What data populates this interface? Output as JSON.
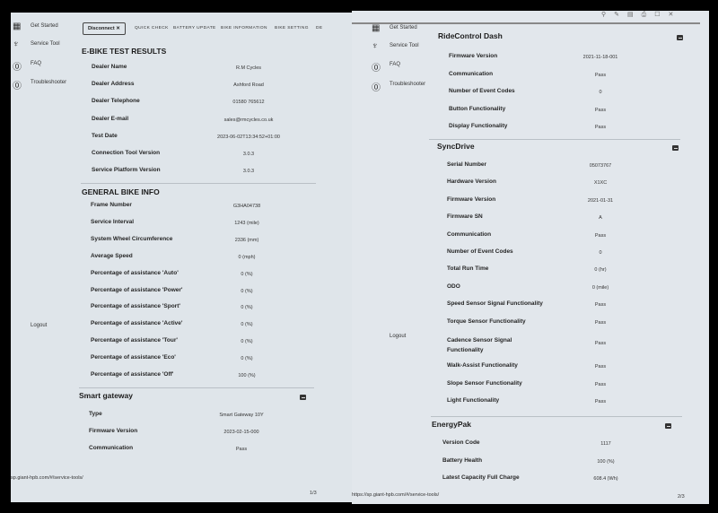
{
  "sidebar": {
    "items": [
      {
        "label": "Get Started",
        "icon": "grid-icon"
      },
      {
        "label": "Service Tool",
        "icon": "stethoscope-icon"
      },
      {
        "label": "FAQ",
        "icon": "help-circle-icon"
      },
      {
        "label": "Troubleshooter",
        "icon": "help-circle-icon"
      }
    ],
    "logout": "Logout"
  },
  "toolbar": {
    "disconnect_label": "Disconnect",
    "tabs": [
      "QUICK CHECK",
      "BATTERY UPDATE",
      "BIKE INFORMATION",
      "BIKE SETTING",
      "DE"
    ]
  },
  "page1": {
    "test_results": {
      "title": "E-BIKE TEST RESULTS",
      "rows": [
        {
          "label": "Dealer Name",
          "value": "R.M Cycles"
        },
        {
          "label": "Dealer Address",
          "value": "Ashford Road"
        },
        {
          "label": "Dealer Telephone",
          "value": "01580 765612"
        },
        {
          "label": "Dealer E-mail",
          "value": "sales@rmcycles.co.uk"
        },
        {
          "label": "Test Date",
          "value": "2023-06-02T13:34:52+01:00"
        },
        {
          "label": "Connection Tool Version",
          "value": "3.0.3"
        },
        {
          "label": "Service Platform Version",
          "value": "3.0.3"
        }
      ]
    },
    "general": {
      "title": "GENERAL BIKE INFO",
      "rows": [
        {
          "label": "Frame Number",
          "value": "G3HA04738"
        },
        {
          "label": "Service Interval",
          "value": "1243 (mile)"
        },
        {
          "label": "System Wheel Circumference",
          "value": "2336 (mm)"
        },
        {
          "label": "Average Speed",
          "value": "0 (mph)"
        },
        {
          "label": "Percentage of assistance 'Auto'",
          "value": "0 (%)"
        },
        {
          "label": "Percentage of assistance 'Power'",
          "value": "0 (%)"
        },
        {
          "label": "Percentage of assistance 'Sport'",
          "value": "0 (%)"
        },
        {
          "label": "Percentage of assistance 'Active'",
          "value": "0 (%)"
        },
        {
          "label": "Percentage of assistance 'Tour'",
          "value": "0 (%)"
        },
        {
          "label": "Percentage of assistance 'Eco'",
          "value": "0 (%)"
        },
        {
          "label": "Percentage of assistance 'Off'",
          "value": "100 (%)"
        }
      ]
    },
    "gateway": {
      "title": "Smart gateway",
      "rows": [
        {
          "label": "Type",
          "value": "Smart Gateway 10Y"
        },
        {
          "label": "Firmware Version",
          "value": "2023-02-15-000"
        },
        {
          "label": "Communication",
          "value": "Pass"
        }
      ]
    },
    "url": "sp.giant-hpb.com/#/service-tools/",
    "page_number": "1/3"
  },
  "page2": {
    "dash": {
      "title": "RideControl Dash",
      "rows": [
        {
          "label": "Firmware Version",
          "value": "2021-11-18-001"
        },
        {
          "label": "Communication",
          "value": "Pass"
        },
        {
          "label": "Number of Event Codes",
          "value": "0"
        },
        {
          "label": "Button Functionality",
          "value": "Pass"
        },
        {
          "label": "Display Functionality",
          "value": "Pass"
        }
      ]
    },
    "syncdrive": {
      "title": "SyncDrive",
      "rows": [
        {
          "label": "Serial Number",
          "value": "05073767"
        },
        {
          "label": "Hardware Version",
          "value": "X1XC"
        },
        {
          "label": "Firmware Version",
          "value": "2021-01-31"
        },
        {
          "label": "Firmware SN",
          "value": "A"
        },
        {
          "label": "Communication",
          "value": "Pass"
        },
        {
          "label": "Number of Event Codes",
          "value": "0"
        },
        {
          "label": "Total Run Time",
          "value": "0 (hr)"
        },
        {
          "label": "ODO",
          "value": "0 (mile)"
        },
        {
          "label": "Speed Sensor Signal Functionality",
          "value": "Pass"
        },
        {
          "label": "Torque Sensor Functionality",
          "value": "Pass"
        },
        {
          "label": "Cadence Sensor Signal Functionality",
          "value": "Pass"
        },
        {
          "label": "Walk-Assist Functionality",
          "value": "Pass"
        },
        {
          "label": "Slope Sensor Functionality",
          "value": "Pass"
        },
        {
          "label": "Light Functionality",
          "value": "Pass"
        }
      ]
    },
    "energypak": {
      "title": "EnergyPak",
      "rows": [
        {
          "label": "Version Code",
          "value": "1117"
        },
        {
          "label": "Battery Health",
          "value": "100 (%)"
        },
        {
          "label": "Latest Capacity Full Charge",
          "value": "608.4 (Wh)"
        }
      ]
    },
    "url": "https://sp.giant-hpb.com/#/service-tools/",
    "page_number": "2/3"
  }
}
